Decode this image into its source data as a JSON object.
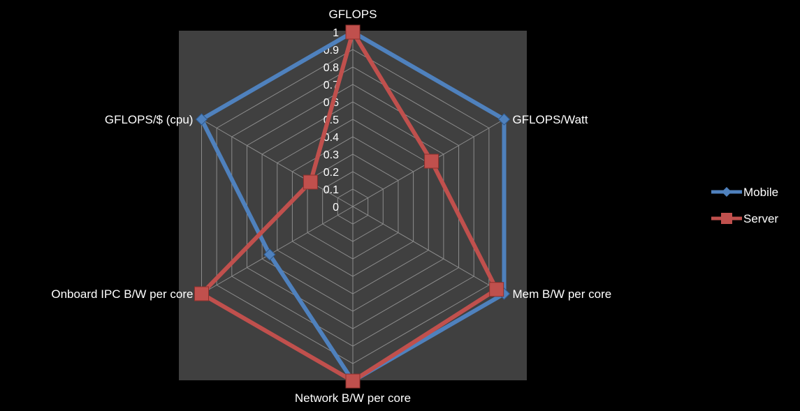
{
  "chart_data": {
    "type": "radar",
    "title": "",
    "axes": [
      "GFLOPS",
      "GFLOPS/Watt",
      "Mem B/W per core",
      "Network B/W per core",
      "Onboard IPC B/W per core",
      "GFLOPS/$ (cpu)"
    ],
    "ticks": [
      "0",
      "0.1",
      "0.2",
      "0.3",
      "0.4",
      "0.5",
      "0.6",
      "0.7",
      "0.8",
      "0.9",
      "1"
    ],
    "range": [
      0,
      1
    ],
    "grid": true,
    "legend_position": "right",
    "series": [
      {
        "name": "Mobile",
        "values": [
          1.0,
          1.0,
          1.0,
          1.0,
          0.55,
          1.0
        ],
        "color": "#4F81BD",
        "marker": "diamond"
      },
      {
        "name": "Server",
        "values": [
          1.0,
          0.52,
          0.95,
          1.0,
          1.0,
          0.28
        ],
        "color": "#C0504D",
        "marker": "square"
      }
    ],
    "colors": {
      "background": "#000000",
      "plot_area": "#404040",
      "grid": "#8c8c8c",
      "text": "#ffffff"
    }
  }
}
